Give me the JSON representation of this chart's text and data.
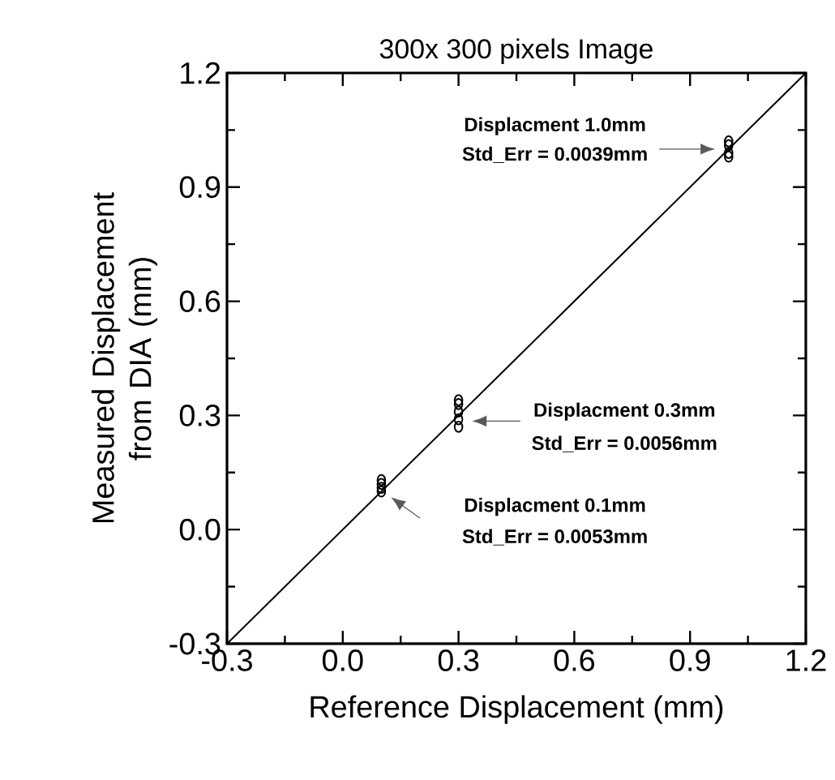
{
  "chart_data": {
    "type": "scatter",
    "title": "300x 300 pixels Image",
    "xlabel": "Reference Displacement (mm)",
    "ylabel": "Measured Displacement from DIA (mm)",
    "series": [
      {
        "type": "line",
        "color": "#000000",
        "x": [
          -0.3,
          1.2
        ],
        "values": [
          -0.3,
          1.2
        ],
        "marker": "none"
      },
      {
        "color": "#000000",
        "marker": "circle",
        "x": [
          0.1,
          0.1,
          0.1,
          0.1,
          0.3,
          0.3,
          0.3,
          0.3,
          0.3,
          1.0,
          1.0,
          1.0,
          1.0
        ],
        "values": [
          0.1,
          0.11,
          0.12,
          0.13,
          0.27,
          0.29,
          0.31,
          0.33,
          0.34,
          0.98,
          0.99,
          1.01,
          1.02
        ]
      }
    ],
    "annotations": [
      "Displacment 1.0mm",
      "Std_Err = 0.0039mm",
      "Displacment 0.3mm",
      "Std_Err = 0.0056mm",
      "Displacment 0.1mm",
      "Std_Err = 0.0053mm"
    ],
    "xlim": [
      -0.3,
      1.2
    ],
    "ylim": [
      -0.3,
      1.2
    ],
    "xticks": [
      -0.3,
      {
        "value": 0,
        "label": "0.0"
      },
      0.3,
      0.6,
      0.9,
      1.2
    ],
    "yticks": [
      -0.3,
      {
        "value": 0,
        "label": "0.0"
      },
      0.3,
      0.6,
      0.9,
      1.2
    ],
    "grid": false
  }
}
